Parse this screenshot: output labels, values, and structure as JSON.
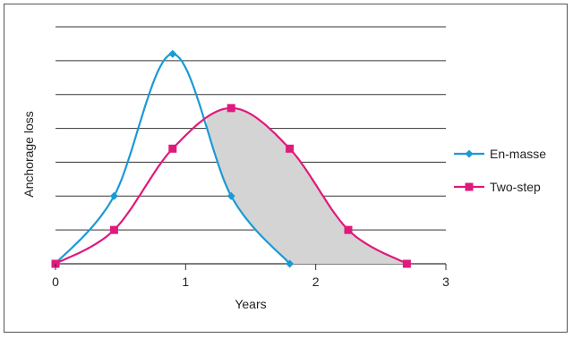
{
  "chart_data": {
    "type": "line",
    "title": "",
    "xlabel": "Years",
    "ylabel": "Anchorage loss",
    "xlim": [
      0,
      3
    ],
    "ylim": [
      0,
      7
    ],
    "x_ticks": [
      "0",
      "1",
      "2",
      "3"
    ],
    "y_tick_labels_shown": false,
    "grid": "horizontal",
    "legend_position": "right",
    "shaded_region_between_series": true,
    "shade_color": "#d4d4d4",
    "series": [
      {
        "name": "En-masse",
        "color": "#1a9ad6",
        "marker": "diamond",
        "x": [
          0,
          0.45,
          0.9,
          1.35,
          1.8
        ],
        "y": [
          0,
          2,
          6.2,
          2,
          0
        ]
      },
      {
        "name": "Two-step",
        "color": "#e0197d",
        "marker": "square",
        "x": [
          0,
          0.45,
          0.9,
          1.35,
          1.8,
          2.25,
          2.7
        ],
        "y": [
          0,
          1,
          3.4,
          4.6,
          3.4,
          1,
          0
        ]
      }
    ]
  }
}
